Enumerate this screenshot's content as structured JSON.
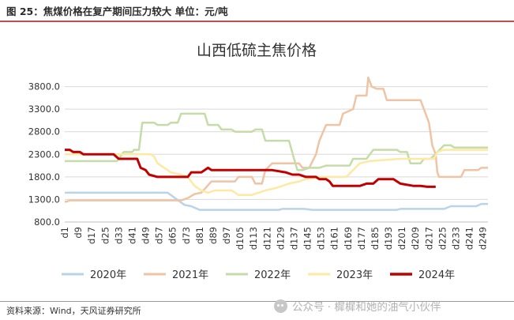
{
  "figure_header": "图 25：焦煤价格在复产期间压力较大  单位：元/吨",
  "source": "资料来源：Wind，天风证券研究所",
  "watermark": "公众号 · 樨樨和她的油气小伙伴",
  "watermark_icon": "wechat-icon",
  "chart_data": {
    "type": "line",
    "title": "山西低硫主焦价格",
    "xlabel": "",
    "ylabel": "",
    "ylim": [
      800,
      4300
    ],
    "ytick_values": [
      800,
      1300,
      1800,
      2300,
      2800,
      3300,
      3800
    ],
    "ytick_labels": [
      "800.0",
      "1300.0",
      "1800.0",
      "2300.0",
      "2800.0",
      "3300.0",
      "3800.0"
    ],
    "xlim": [
      1,
      252
    ],
    "xtick_labels": [
      "d1",
      "d9",
      "d17",
      "d25",
      "d33",
      "d41",
      "d49",
      "d57",
      "d65",
      "d73",
      "d81",
      "d89",
      "d97",
      "d105",
      "d113",
      "d121",
      "d129",
      "d137",
      "d145",
      "d153",
      "d161",
      "d169",
      "d177",
      "d185",
      "d193",
      "d201",
      "d209",
      "d217",
      "d225",
      "d233",
      "d241",
      "d249"
    ],
    "grid": true,
    "legend_position": "bottom",
    "series": [
      {
        "name": "2020年",
        "color": "#b8d3ea",
        "points": [
          [
            1,
            1450
          ],
          [
            62,
            1450
          ],
          [
            72,
            1180
          ],
          [
            76,
            1150
          ],
          [
            81,
            1070
          ],
          [
            128,
            1070
          ],
          [
            130,
            1090
          ],
          [
            143,
            1090
          ],
          [
            148,
            1070
          ],
          [
            198,
            1070
          ],
          [
            200,
            1090
          ],
          [
            226,
            1090
          ],
          [
            230,
            1150
          ],
          [
            245,
            1150
          ],
          [
            248,
            1200
          ],
          [
            252,
            1200
          ]
        ]
      },
      {
        "name": "2021年",
        "color": "#efc4a4",
        "points": [
          [
            1,
            1250
          ],
          [
            2,
            1250
          ],
          [
            4,
            1280
          ],
          [
            70,
            1280
          ],
          [
            74,
            1330
          ],
          [
            78,
            1420
          ],
          [
            82,
            1450
          ],
          [
            88,
            1700
          ],
          [
            102,
            1700
          ],
          [
            104,
            1800
          ],
          [
            112,
            1800
          ],
          [
            114,
            1650
          ],
          [
            118,
            1650
          ],
          [
            120,
            1950
          ],
          [
            124,
            2100
          ],
          [
            140,
            2100
          ],
          [
            142,
            2000
          ],
          [
            146,
            2000
          ],
          [
            150,
            2300
          ],
          [
            152,
            2600
          ],
          [
            156,
            2950
          ],
          [
            164,
            2950
          ],
          [
            166,
            3200
          ],
          [
            172,
            3300
          ],
          [
            174,
            3600
          ],
          [
            180,
            3600
          ],
          [
            181,
            4000
          ],
          [
            183,
            3800
          ],
          [
            186,
            3750
          ],
          [
            190,
            3750
          ],
          [
            192,
            3500
          ],
          [
            212,
            3500
          ],
          [
            214,
            3300
          ],
          [
            217,
            3000
          ],
          [
            219,
            2500
          ],
          [
            221,
            2300
          ],
          [
            222,
            1900
          ],
          [
            223,
            1800
          ],
          [
            236,
            1800
          ],
          [
            238,
            1950
          ],
          [
            246,
            1950
          ],
          [
            248,
            2000
          ],
          [
            252,
            2000
          ]
        ]
      },
      {
        "name": "2022年",
        "color": "#c5dca8",
        "points": [
          [
            1,
            2150
          ],
          [
            32,
            2150
          ],
          [
            36,
            2350
          ],
          [
            41,
            2350
          ],
          [
            42,
            2400
          ],
          [
            45,
            2400
          ],
          [
            47,
            3000
          ],
          [
            54,
            3000
          ],
          [
            56,
            2950
          ],
          [
            62,
            2950
          ],
          [
            64,
            3000
          ],
          [
            68,
            3000
          ],
          [
            70,
            3200
          ],
          [
            84,
            3200
          ],
          [
            86,
            2950
          ],
          [
            92,
            2950
          ],
          [
            94,
            2850
          ],
          [
            100,
            2850
          ],
          [
            102,
            2800
          ],
          [
            112,
            2800
          ],
          [
            114,
            2850
          ],
          [
            118,
            2850
          ],
          [
            120,
            2600
          ],
          [
            134,
            2600
          ],
          [
            137,
            2200
          ],
          [
            139,
            1950
          ],
          [
            142,
            1950
          ],
          [
            146,
            2000
          ],
          [
            152,
            2000
          ],
          [
            156,
            2050
          ],
          [
            170,
            2050
          ],
          [
            172,
            2200
          ],
          [
            180,
            2200
          ],
          [
            184,
            2400
          ],
          [
            198,
            2400
          ],
          [
            200,
            2350
          ],
          [
            204,
            2350
          ],
          [
            206,
            2100
          ],
          [
            212,
            2100
          ],
          [
            214,
            2200
          ],
          [
            218,
            2200
          ],
          [
            222,
            2350
          ],
          [
            226,
            2500
          ],
          [
            230,
            2500
          ],
          [
            232,
            2450
          ],
          [
            252,
            2450
          ]
        ]
      },
      {
        "name": "2023年",
        "color": "#fde9a2",
        "points": [
          [
            1,
            2300
          ],
          [
            52,
            2300
          ],
          [
            54,
            2250
          ],
          [
            56,
            2100
          ],
          [
            60,
            2000
          ],
          [
            64,
            1900
          ],
          [
            70,
            1850
          ],
          [
            74,
            1800
          ],
          [
            76,
            1700
          ],
          [
            78,
            1600
          ],
          [
            82,
            1500
          ],
          [
            86,
            1450
          ],
          [
            90,
            1500
          ],
          [
            100,
            1500
          ],
          [
            104,
            1400
          ],
          [
            112,
            1400
          ],
          [
            116,
            1450
          ],
          [
            120,
            1500
          ],
          [
            126,
            1550
          ],
          [
            130,
            1600
          ],
          [
            134,
            1650
          ],
          [
            140,
            1700
          ],
          [
            144,
            1750
          ],
          [
            154,
            1800
          ],
          [
            168,
            1800
          ],
          [
            172,
            1950
          ],
          [
            176,
            2100
          ],
          [
            182,
            2150
          ],
          [
            200,
            2200
          ],
          [
            220,
            2200
          ],
          [
            222,
            2350
          ],
          [
            226,
            2400
          ],
          [
            252,
            2400
          ]
        ]
      },
      {
        "name": "2024年",
        "color": "#c00000",
        "points": [
          [
            1,
            2400
          ],
          [
            4,
            2400
          ],
          [
            6,
            2350
          ],
          [
            10,
            2350
          ],
          [
            12,
            2300
          ],
          [
            30,
            2300
          ],
          [
            33,
            2200
          ],
          [
            44,
            2200
          ],
          [
            46,
            2000
          ],
          [
            49,
            1950
          ],
          [
            51,
            1850
          ],
          [
            56,
            1800
          ],
          [
            74,
            1800
          ],
          [
            76,
            1900
          ],
          [
            82,
            1900
          ],
          [
            86,
            2000
          ],
          [
            88,
            1950
          ],
          [
            124,
            1950
          ],
          [
            132,
            1900
          ],
          [
            136,
            1850
          ],
          [
            140,
            1850
          ],
          [
            144,
            1800
          ],
          [
            150,
            1800
          ],
          [
            152,
            1750
          ],
          [
            156,
            1750
          ],
          [
            158,
            1700
          ],
          [
            160,
            1600
          ],
          [
            176,
            1600
          ],
          [
            180,
            1650
          ],
          [
            184,
            1650
          ],
          [
            187,
            1750
          ],
          [
            196,
            1750
          ],
          [
            200,
            1650
          ],
          [
            208,
            1600
          ],
          [
            212,
            1600
          ],
          [
            216,
            1580
          ],
          [
            221,
            1580
          ]
        ]
      }
    ]
  }
}
